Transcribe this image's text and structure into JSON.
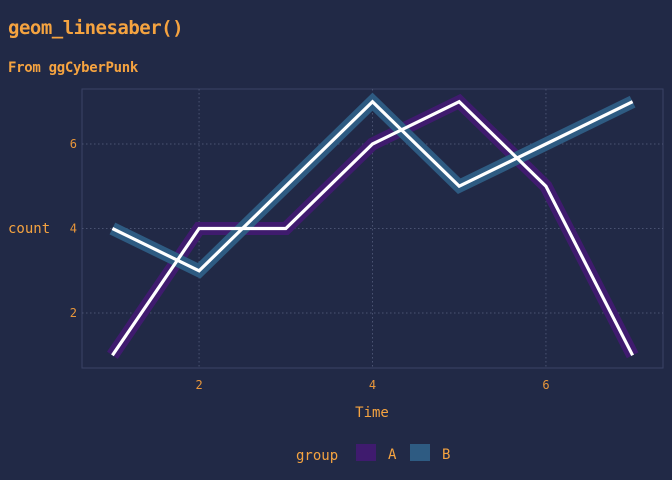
{
  "chart_data": {
    "type": "line",
    "title": "geom_linesaber()",
    "subtitle": "From ggCyberPunk",
    "xlabel": "Time",
    "ylabel": "count",
    "x": [
      1,
      2,
      3,
      4,
      5,
      6,
      7
    ],
    "xlim": [
      0.65,
      7.35
    ],
    "ylim": [
      0.7,
      7.3
    ],
    "xticks": [
      2,
      4,
      6
    ],
    "yticks": [
      2,
      4,
      6
    ],
    "grid": true,
    "series": [
      {
        "name": "A",
        "values": [
          1,
          4,
          4,
          6,
          7,
          5,
          1
        ],
        "saber_color": "#3F1B6E",
        "line_color": "#FFFFFF"
      },
      {
        "name": "B",
        "values": [
          4,
          3,
          5,
          7,
          5,
          6,
          7
        ],
        "saber_color": "#2E5B82",
        "line_color": "#FFFFFF"
      }
    ],
    "legend": {
      "title": "group",
      "position": "bottom"
    }
  }
}
